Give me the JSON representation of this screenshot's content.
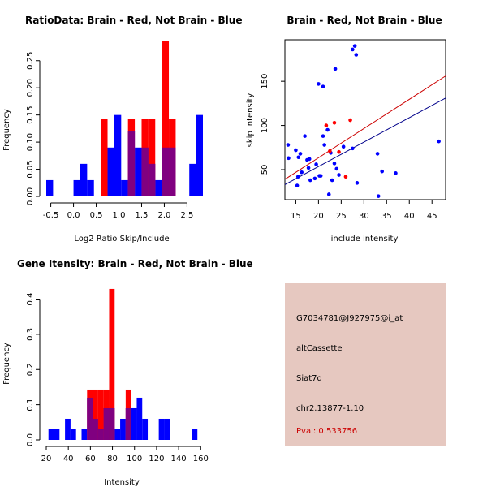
{
  "colors": {
    "red": "#ff0000",
    "blue": "#0000ff",
    "overlap": "#800080",
    "fit_red": "#cc0000",
    "fit_blue": "#00008b",
    "info_bg": "#e6c8c0"
  },
  "chart_data": [
    {
      "type": "bar",
      "subtype": "overlaid-histogram",
      "title": "RatioData: Brain - Red, Not Brain - Blue",
      "xlabel": "Log2 Ratio Skip/Include",
      "ylabel": "Frequency",
      "xlim": [
        -0.6,
        2.85
      ],
      "ylim": [
        0,
        0.29
      ],
      "bin_width": 0.15,
      "x_ticks": [
        -0.5,
        0.0,
        0.5,
        1.0,
        1.5,
        2.0,
        2.5
      ],
      "x_tick_labels": [
        "-0.5",
        "0.0",
        "0.5",
        "1.0",
        "1.5",
        "2.0",
        "2.5"
      ],
      "y_ticks": [
        0,
        0.05,
        0.1,
        0.15,
        0.2,
        0.25
      ],
      "y_tick_labels": [
        "0.00",
        "0.05",
        "0.10",
        "0.15",
        "0.20",
        "0.25"
      ],
      "series": [
        {
          "name": "Not Brain",
          "color": "blue",
          "bins": [
            [
              -0.6,
              0.03
            ],
            [
              0.0,
              0.03
            ],
            [
              0.15,
              0.06
            ],
            [
              0.3,
              0.03
            ],
            [
              0.75,
              0.09
            ],
            [
              0.9,
              0.15
            ],
            [
              1.05,
              0.03
            ],
            [
              1.2,
              0.12
            ],
            [
              1.35,
              0.09
            ],
            [
              1.5,
              0.09
            ],
            [
              1.65,
              0.06
            ],
            [
              1.8,
              0.03
            ],
            [
              1.95,
              0.09
            ],
            [
              2.1,
              0.09
            ],
            [
              2.55,
              0.06
            ],
            [
              2.7,
              0.15
            ]
          ]
        },
        {
          "name": "Brain",
          "color": "red",
          "bins": [
            [
              0.6,
              0.143
            ],
            [
              1.2,
              0.143
            ],
            [
              1.5,
              0.143
            ],
            [
              1.65,
              0.143
            ],
            [
              1.95,
              0.286
            ],
            [
              2.1,
              0.143
            ]
          ]
        }
      ]
    },
    {
      "type": "scatter",
      "title": "Brain - Red, Not Brain - Blue",
      "xlabel": "include intensity",
      "ylabel": "skip intensity",
      "xlim": [
        12.6,
        48.0
      ],
      "ylim": [
        16,
        197
      ],
      "x_ticks": [
        15,
        20,
        25,
        30,
        35,
        40,
        45
      ],
      "y_ticks": [
        50,
        100,
        150
      ],
      "series": [
        {
          "name": "Not Brain",
          "color": "blue",
          "points": [
            [
              13.3,
              78
            ],
            [
              13.4,
              63
            ],
            [
              15.0,
              72
            ],
            [
              15.3,
              32
            ],
            [
              15.5,
              42
            ],
            [
              15.6,
              64
            ],
            [
              16.0,
              68
            ],
            [
              16.3,
              47
            ],
            [
              17.0,
              88
            ],
            [
              17.5,
              61
            ],
            [
              17.8,
              52
            ],
            [
              18.0,
              62
            ],
            [
              18.2,
              38
            ],
            [
              19.2,
              40
            ],
            [
              19.5,
              56
            ],
            [
              20.0,
              147
            ],
            [
              20.2,
              43
            ],
            [
              20.5,
              43
            ],
            [
              21.0,
              144
            ],
            [
              21.0,
              88
            ],
            [
              21.3,
              78
            ],
            [
              22.0,
              95
            ],
            [
              22.3,
              22
            ],
            [
              22.7,
              69
            ],
            [
              23.0,
              38
            ],
            [
              23.5,
              57
            ],
            [
              23.7,
              164
            ],
            [
              24.0,
              51
            ],
            [
              24.5,
              44
            ],
            [
              25.5,
              76
            ],
            [
              27.5,
              74
            ],
            [
              27.5,
              186
            ],
            [
              28.0,
              190
            ],
            [
              28.3,
              180
            ],
            [
              28.5,
              35
            ],
            [
              33.0,
              68
            ],
            [
              33.2,
              20
            ],
            [
              34.0,
              48
            ],
            [
              37.0,
              46
            ],
            [
              46.5,
              82
            ]
          ]
        },
        {
          "name": "Brain",
          "color": "red",
          "points": [
            [
              21.7,
              100
            ],
            [
              22.5,
              71
            ],
            [
              23.5,
              103
            ],
            [
              24.5,
              70
            ],
            [
              26.0,
              42
            ],
            [
              27.0,
              106
            ]
          ]
        }
      ],
      "fit_lines": [
        {
          "name": "Brain",
          "color": "fit_red",
          "from": [
            12.6,
            39
          ],
          "to": [
            48.0,
            156
          ]
        },
        {
          "name": "Not Brain",
          "color": "fit_blue",
          "from": [
            12.6,
            33
          ],
          "to": [
            48.0,
            131
          ]
        }
      ]
    },
    {
      "type": "bar",
      "subtype": "overlaid-histogram",
      "title": "Gene Itensity: Brain - Red, Not Brain - Blue",
      "xlabel": "Intensity",
      "ylabel": "Frequency",
      "xlim": [
        20,
        162
      ],
      "ylim": [
        0,
        0.445
      ],
      "bin_width": 5,
      "x_ticks": [
        20,
        40,
        60,
        80,
        100,
        120,
        140,
        160
      ],
      "x_tick_labels": [
        "20",
        "40",
        "60",
        "80",
        "100",
        "120",
        "140",
        "160"
      ],
      "y_ticks": [
        0.0,
        0.1,
        0.2,
        0.3,
        0.4
      ],
      "y_tick_labels": [
        "0.0",
        "0.1",
        "0.2",
        "0.3",
        "0.4"
      ],
      "series": [
        {
          "name": "Not Brain",
          "color": "blue",
          "bins": [
            [
              22,
              0.03
            ],
            [
              27,
              0.03
            ],
            [
              37,
              0.06
            ],
            [
              42,
              0.03
            ],
            [
              52,
              0.03
            ],
            [
              57,
              0.12
            ],
            [
              62,
              0.06
            ],
            [
              67,
              0.03
            ],
            [
              72,
              0.09
            ],
            [
              77,
              0.09
            ],
            [
              82,
              0.03
            ],
            [
              87,
              0.06
            ],
            [
              92,
              0.09
            ],
            [
              97,
              0.09
            ],
            [
              102,
              0.12
            ],
            [
              107,
              0.06
            ],
            [
              122,
              0.06
            ],
            [
              127,
              0.06
            ],
            [
              152,
              0.03
            ]
          ]
        },
        {
          "name": "Brain",
          "color": "red",
          "bins": [
            [
              57,
              0.143
            ],
            [
              62,
              0.143
            ],
            [
              67,
              0.143
            ],
            [
              72,
              0.143
            ],
            [
              77,
              0.429
            ],
            [
              92,
              0.143
            ]
          ]
        }
      ]
    }
  ],
  "info_panel": {
    "probe_id": "G7034781@J927975@i_at",
    "event_type": "altCassette",
    "gene": "Siat7d",
    "location": "chr2.13877-1.10",
    "pval": "Pval: 0.533756"
  }
}
